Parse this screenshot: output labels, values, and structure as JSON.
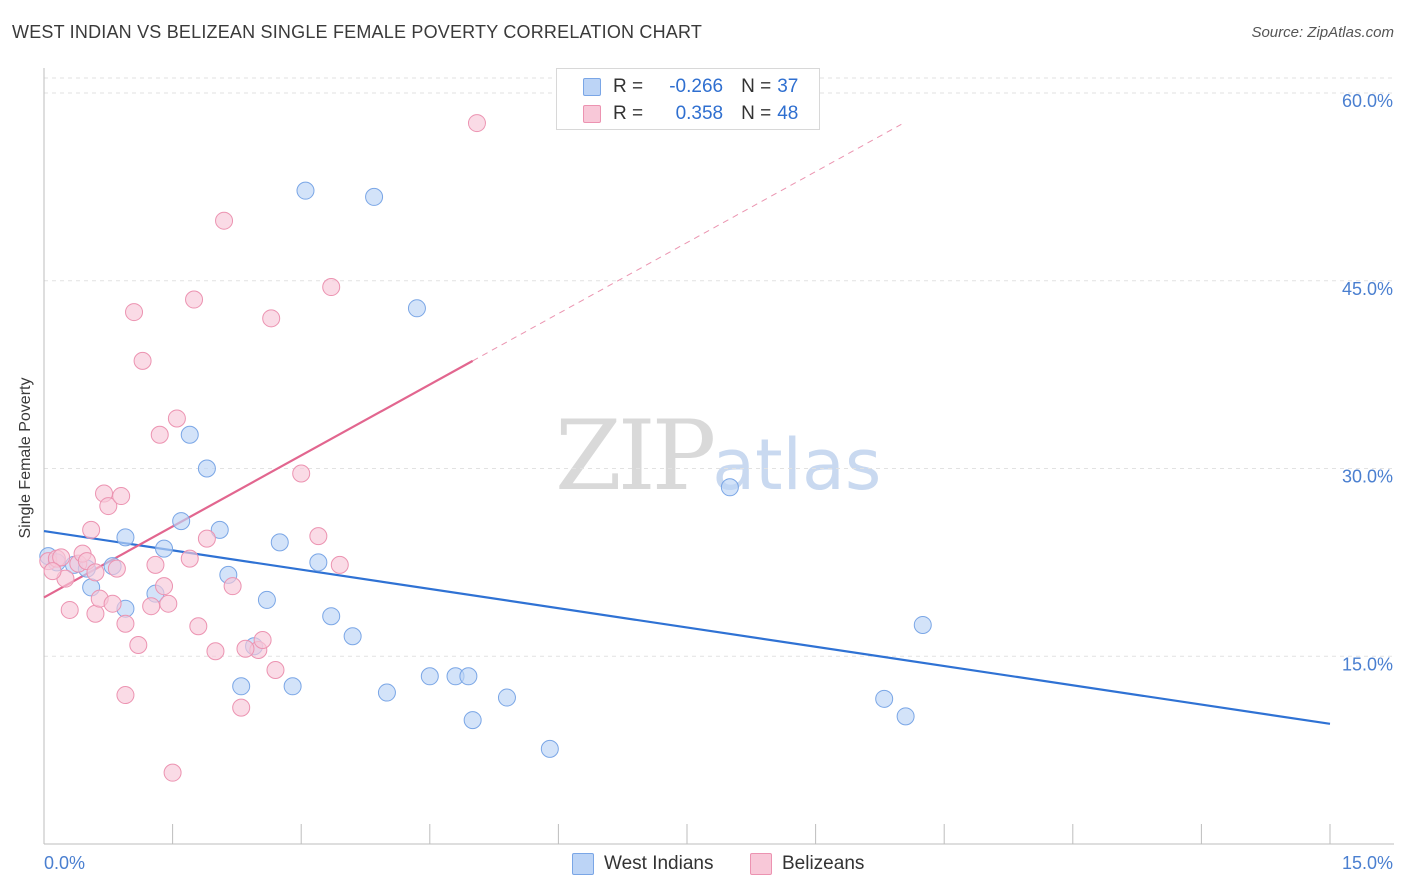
{
  "header": {
    "title": "WEST INDIAN VS BELIZEAN SINGLE FEMALE POVERTY CORRELATION CHART",
    "source": "Source: ZipAtlas.com"
  },
  "watermark": {
    "zip": "ZIP",
    "atlas": "atlas"
  },
  "legend": {
    "r_label": "R =",
    "n_label": "N =",
    "rows": [
      {
        "r": "-0.266",
        "n": "37",
        "fill": "#bcd4f6",
        "stroke": "#7aa6e6"
      },
      {
        "r": "0.358",
        "n": "48",
        "fill": "#f8c8d8",
        "stroke": "#ec93b1"
      }
    ]
  },
  "bottom_legend": [
    "West Indians",
    "Belizeans"
  ],
  "chart_data": {
    "type": "scatter",
    "title": "WEST INDIAN VS BELIZEAN SINGLE FEMALE POVERTY CORRELATION CHART",
    "ylabel": "Single Female Poverty",
    "xlabel": "",
    "xlim": [
      0,
      15
    ],
    "ylim": [
      0,
      62
    ],
    "x_tick_labels": [
      {
        "value": 0,
        "label": "0.0%"
      },
      {
        "value": 15,
        "label": "15.0%"
      }
    ],
    "y_tick_labels": [
      {
        "value": 15,
        "label": "15.0%"
      },
      {
        "value": 30,
        "label": "30.0%"
      },
      {
        "value": 45,
        "label": "45.0%"
      },
      {
        "value": 60,
        "label": "60.0%"
      }
    ],
    "grid": true,
    "legend_position": "top-center",
    "series": [
      {
        "name": "West Indians",
        "color": "#7aa6e6",
        "fill": "#bcd4f6",
        "line_color": "#2f72d4",
        "trend": {
          "x": [
            0,
            15
          ],
          "y": [
            25.0,
            9.6
          ]
        },
        "points": [
          [
            0.05,
            23.0
          ],
          [
            0.15,
            22.5
          ],
          [
            0.35,
            22.3
          ],
          [
            0.5,
            22.0
          ],
          [
            0.55,
            20.5
          ],
          [
            0.95,
            18.8
          ],
          [
            0.95,
            24.5
          ],
          [
            1.3,
            20.0
          ],
          [
            1.4,
            23.6
          ],
          [
            1.6,
            25.8
          ],
          [
            1.7,
            32.7
          ],
          [
            1.9,
            30.0
          ],
          [
            2.05,
            25.1
          ],
          [
            2.15,
            21.5
          ],
          [
            2.3,
            12.6
          ],
          [
            2.45,
            15.8
          ],
          [
            2.6,
            19.5
          ],
          [
            2.75,
            24.1
          ],
          [
            2.9,
            12.6
          ],
          [
            3.05,
            52.2
          ],
          [
            3.2,
            22.5
          ],
          [
            3.35,
            18.2
          ],
          [
            3.6,
            16.6
          ],
          [
            3.85,
            51.7
          ],
          [
            4.0,
            12.1
          ],
          [
            4.35,
            42.8
          ],
          [
            4.5,
            13.4
          ],
          [
            4.8,
            13.4
          ],
          [
            4.95,
            13.4
          ],
          [
            5.0,
            9.9
          ],
          [
            5.4,
            11.7
          ],
          [
            5.9,
            7.6
          ],
          [
            8.0,
            28.5
          ],
          [
            9.8,
            11.6
          ],
          [
            10.05,
            10.2
          ],
          [
            10.25,
            17.5
          ],
          [
            0.8,
            22.2
          ]
        ]
      },
      {
        "name": "Belizeans",
        "color": "#ec93b1",
        "fill": "#f8c8d8",
        "line_color": "#e2668f",
        "trend": {
          "x": [
            0,
            5.0
          ],
          "y": [
            19.7,
            38.6
          ]
        },
        "trend_extension": {
          "x": [
            5.0,
            10.0
          ],
          "y": [
            38.6,
            57.5
          ]
        },
        "points": [
          [
            0.05,
            22.6
          ],
          [
            0.15,
            22.8
          ],
          [
            0.25,
            21.2
          ],
          [
            0.3,
            18.7
          ],
          [
            0.4,
            22.4
          ],
          [
            0.45,
            23.2
          ],
          [
            0.55,
            25.1
          ],
          [
            0.6,
            18.4
          ],
          [
            0.65,
            19.6
          ],
          [
            0.7,
            28.0
          ],
          [
            0.75,
            27.0
          ],
          [
            0.8,
            19.2
          ],
          [
            0.85,
            22.0
          ],
          [
            0.9,
            27.8
          ],
          [
            0.95,
            17.6
          ],
          [
            0.95,
            11.9
          ],
          [
            1.05,
            42.5
          ],
          [
            1.1,
            15.9
          ],
          [
            1.15,
            38.6
          ],
          [
            1.25,
            19.0
          ],
          [
            1.35,
            32.7
          ],
          [
            1.4,
            20.6
          ],
          [
            1.45,
            19.2
          ],
          [
            1.5,
            5.7
          ],
          [
            1.55,
            34.0
          ],
          [
            1.7,
            22.8
          ],
          [
            1.75,
            43.5
          ],
          [
            1.8,
            17.4
          ],
          [
            1.9,
            24.4
          ],
          [
            2.0,
            15.4
          ],
          [
            2.1,
            49.8
          ],
          [
            2.2,
            20.6
          ],
          [
            2.3,
            10.9
          ],
          [
            2.5,
            15.5
          ],
          [
            2.55,
            16.3
          ],
          [
            2.65,
            42.0
          ],
          [
            2.7,
            13.9
          ],
          [
            3.0,
            29.6
          ],
          [
            3.2,
            24.6
          ],
          [
            3.35,
            44.5
          ],
          [
            3.45,
            22.3
          ],
          [
            5.05,
            57.6
          ],
          [
            0.5,
            22.6
          ],
          [
            0.2,
            22.9
          ],
          [
            1.3,
            22.3
          ],
          [
            2.35,
            15.6
          ],
          [
            0.1,
            21.8
          ],
          [
            0.6,
            21.7
          ]
        ]
      }
    ]
  }
}
